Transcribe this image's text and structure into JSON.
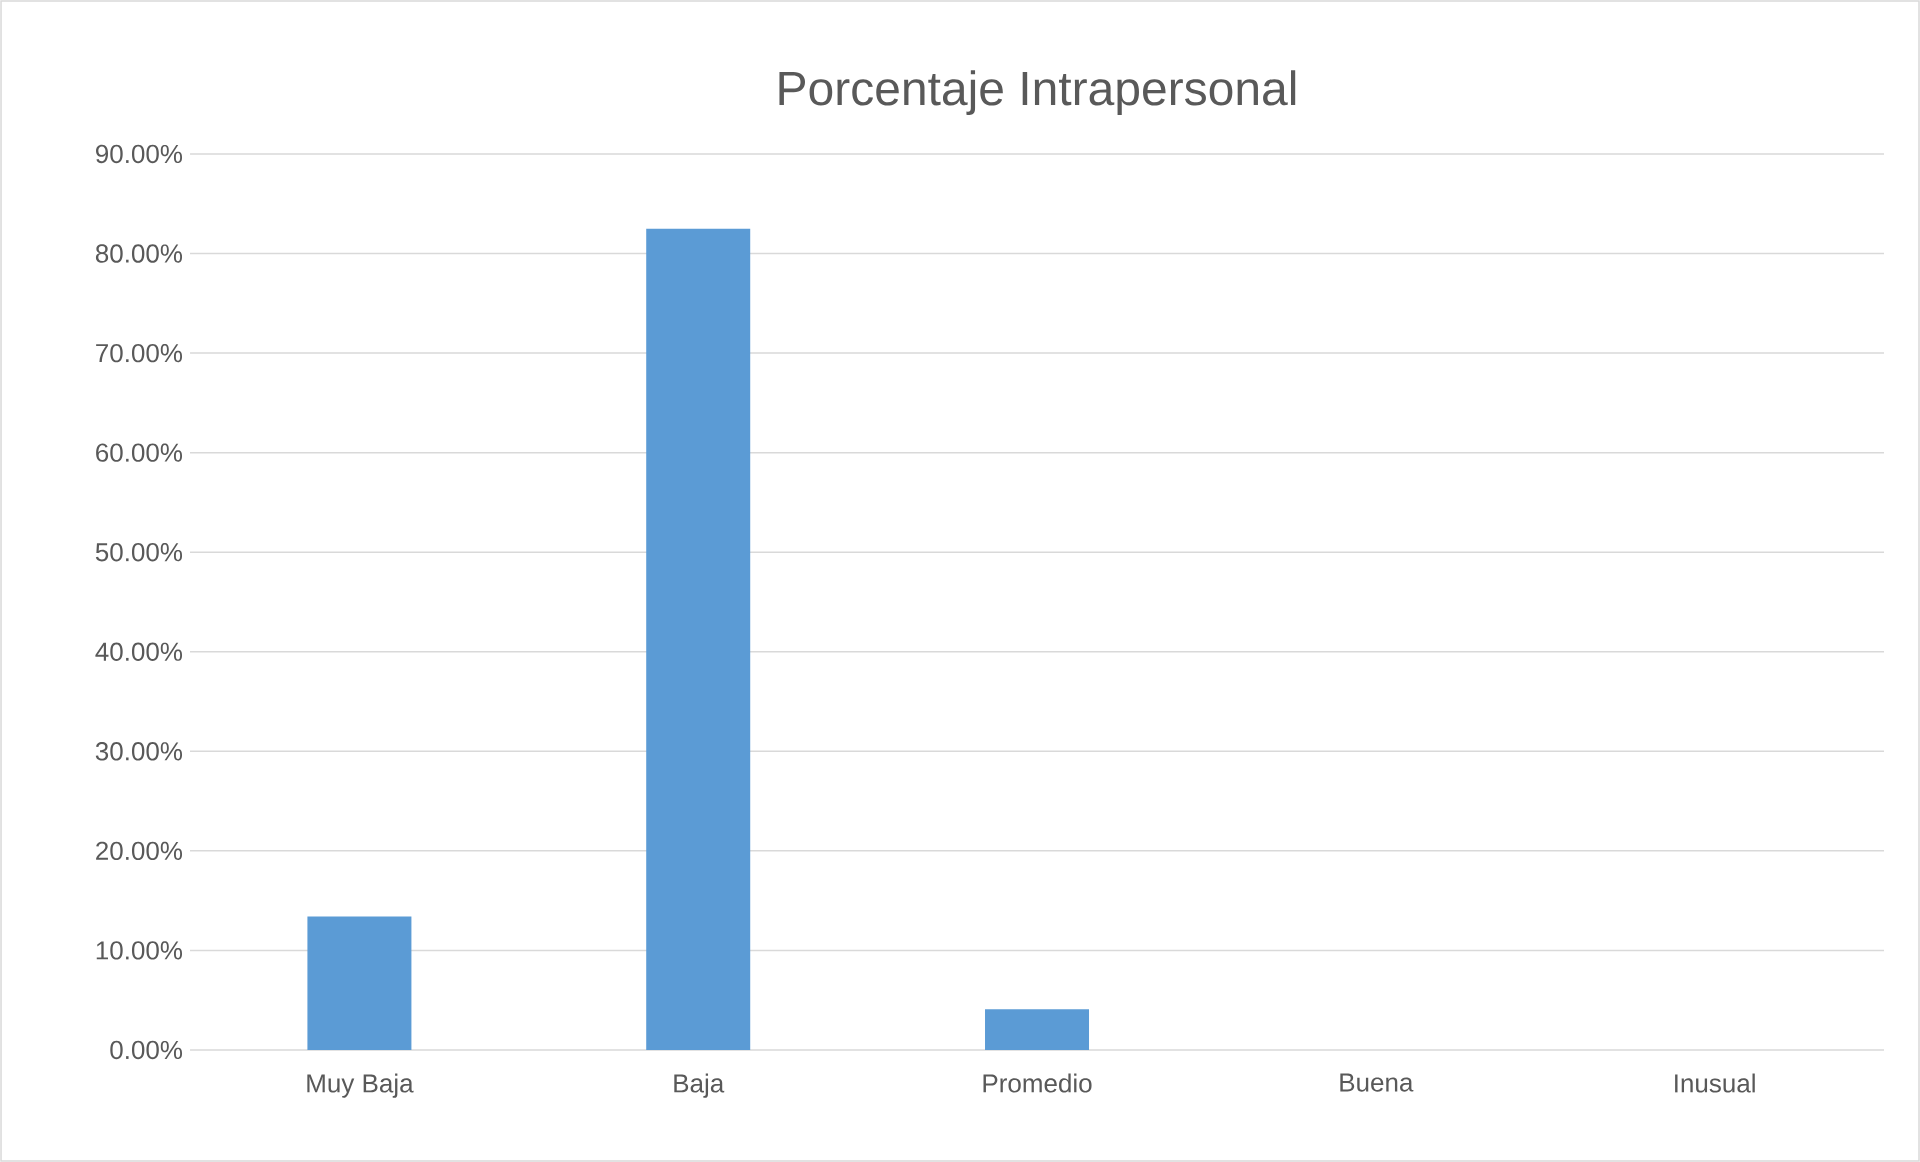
{
  "chart_data": {
    "type": "bar",
    "title": "Porcentaje Intrapersonal",
    "categories": [
      "Muy Baja",
      "Baja",
      "Promedio",
      "Buena",
      "Inusual"
    ],
    "values": [
      13.4,
      82.5,
      4.1,
      0,
      0
    ],
    "color": "#5b9bd5",
    "ylim": [
      0,
      90
    ],
    "yticks": [
      {
        "value": 0,
        "label": "0.00%"
      },
      {
        "value": 10,
        "label": "10.00%"
      },
      {
        "value": 20,
        "label": "20.00%"
      },
      {
        "value": 30,
        "label": "30.00%"
      },
      {
        "value": 40,
        "label": "40.00%"
      },
      {
        "value": 50,
        "label": "50.00%"
      },
      {
        "value": 60,
        "label": "60.00%"
      },
      {
        "value": 70,
        "label": "70.00%"
      },
      {
        "value": 80,
        "label": "80.00%"
      },
      {
        "value": 90,
        "label": "90.00%"
      }
    ],
    "grid": "y"
  }
}
